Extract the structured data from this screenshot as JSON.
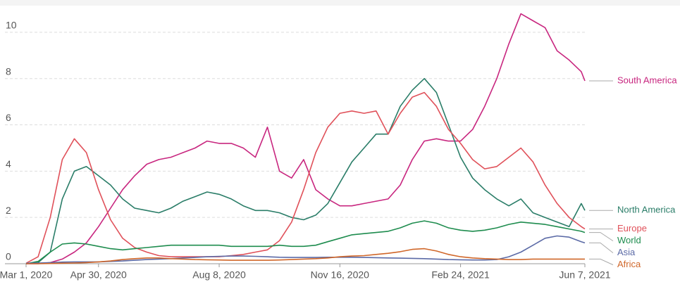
{
  "chart_data": {
    "type": "line",
    "x": [
      "2020-03-01",
      "2020-03-11",
      "2020-03-21",
      "2020-03-31",
      "2020-04-10",
      "2020-04-20",
      "2020-04-30",
      "2020-05-10",
      "2020-05-20",
      "2020-05-30",
      "2020-06-09",
      "2020-06-19",
      "2020-06-29",
      "2020-07-09",
      "2020-07-19",
      "2020-07-29",
      "2020-08-08",
      "2020-08-18",
      "2020-08-28",
      "2020-09-07",
      "2020-09-17",
      "2020-09-27",
      "2020-10-07",
      "2020-10-17",
      "2020-10-27",
      "2020-11-06",
      "2020-11-16",
      "2020-11-26",
      "2020-12-06",
      "2020-12-16",
      "2020-12-26",
      "2021-01-05",
      "2021-01-15",
      "2021-01-25",
      "2021-02-04",
      "2021-02-14",
      "2021-02-24",
      "2021-03-06",
      "2021-03-16",
      "2021-03-26",
      "2021-04-05",
      "2021-04-15",
      "2021-04-25",
      "2021-05-05",
      "2021-05-15",
      "2021-05-25",
      "2021-06-04",
      "2021-06-07"
    ],
    "series": [
      {
        "name": "South America",
        "color": "#c8267f",
        "values": [
          0,
          0,
          0.05,
          0.2,
          0.5,
          0.9,
          1.6,
          2.4,
          3.2,
          3.8,
          4.3,
          4.5,
          4.6,
          4.8,
          5.0,
          5.3,
          5.2,
          5.2,
          5.0,
          4.6,
          5.9,
          4.0,
          3.7,
          4.5,
          3.2,
          2.8,
          2.5,
          2.5,
          2.6,
          2.7,
          2.8,
          3.4,
          4.5,
          5.3,
          5.4,
          5.3,
          5.3,
          5.8,
          6.8,
          8.0,
          9.5,
          10.8,
          10.5,
          10.2,
          9.2,
          8.8,
          8.3,
          7.9
        ]
      },
      {
        "name": "North America",
        "color": "#2a7d68",
        "values": [
          0,
          0.05,
          0.5,
          2.8,
          4.0,
          4.2,
          3.8,
          3.4,
          2.8,
          2.4,
          2.3,
          2.2,
          2.4,
          2.7,
          2.9,
          3.1,
          3.0,
          2.8,
          2.5,
          2.3,
          2.3,
          2.2,
          2.0,
          1.9,
          2.1,
          2.6,
          3.5,
          4.4,
          5.0,
          5.6,
          5.6,
          6.8,
          7.5,
          8.0,
          7.4,
          6.0,
          4.6,
          3.7,
          3.2,
          2.8,
          2.5,
          2.8,
          2.2,
          2.0,
          1.8,
          1.6,
          2.6,
          2.3
        ]
      },
      {
        "name": "Europe",
        "color": "#e0515a",
        "values": [
          0.02,
          0.3,
          2.0,
          4.5,
          5.4,
          4.8,
          3.2,
          1.9,
          1.1,
          0.7,
          0.5,
          0.35,
          0.3,
          0.3,
          0.3,
          0.3,
          0.3,
          0.35,
          0.4,
          0.5,
          0.6,
          1.0,
          1.8,
          3.2,
          4.8,
          5.9,
          6.5,
          6.6,
          6.5,
          6.6,
          5.6,
          6.5,
          7.2,
          7.4,
          6.8,
          5.8,
          5.2,
          4.5,
          4.1,
          4.2,
          4.6,
          5.0,
          4.4,
          3.4,
          2.6,
          2.0,
          1.6,
          1.5
        ]
      },
      {
        "name": "World",
        "color": "#1e8c4e",
        "values": [
          0,
          0.1,
          0.5,
          0.85,
          0.9,
          0.85,
          0.75,
          0.65,
          0.6,
          0.65,
          0.7,
          0.75,
          0.8,
          0.8,
          0.8,
          0.8,
          0.8,
          0.75,
          0.75,
          0.75,
          0.75,
          0.8,
          0.75,
          0.75,
          0.8,
          0.95,
          1.1,
          1.25,
          1.3,
          1.35,
          1.4,
          1.55,
          1.75,
          1.85,
          1.75,
          1.55,
          1.45,
          1.4,
          1.45,
          1.55,
          1.7,
          1.8,
          1.75,
          1.7,
          1.6,
          1.5,
          1.4,
          1.35
        ]
      },
      {
        "name": "Asia",
        "color": "#5b6aa6",
        "values": [
          0.02,
          0.03,
          0.05,
          0.07,
          0.08,
          0.08,
          0.08,
          0.1,
          0.12,
          0.15,
          0.18,
          0.2,
          0.22,
          0.25,
          0.27,
          0.3,
          0.32,
          0.33,
          0.33,
          0.32,
          0.3,
          0.28,
          0.27,
          0.27,
          0.27,
          0.28,
          0.28,
          0.28,
          0.27,
          0.26,
          0.25,
          0.24,
          0.23,
          0.22,
          0.2,
          0.18,
          0.17,
          0.16,
          0.16,
          0.18,
          0.3,
          0.5,
          0.8,
          1.1,
          1.2,
          1.15,
          0.95,
          0.9
        ]
      },
      {
        "name": "Africa",
        "color": "#d0672a",
        "values": [
          0,
          0,
          0.01,
          0.02,
          0.03,
          0.05,
          0.08,
          0.12,
          0.18,
          0.22,
          0.25,
          0.25,
          0.22,
          0.2,
          0.18,
          0.17,
          0.16,
          0.15,
          0.15,
          0.15,
          0.15,
          0.16,
          0.18,
          0.2,
          0.22,
          0.25,
          0.3,
          0.33,
          0.35,
          0.4,
          0.45,
          0.52,
          0.62,
          0.65,
          0.55,
          0.4,
          0.3,
          0.25,
          0.22,
          0.2,
          0.18,
          0.18,
          0.2,
          0.2,
          0.2,
          0.2,
          0.2,
          0.2
        ]
      }
    ],
    "xlim": [
      "2020-03-01",
      "2021-06-07"
    ],
    "xticks": [
      {
        "value": "2020-03-01",
        "label": "Mar 1, 2020"
      },
      {
        "value": "2020-04-30",
        "label": "Apr 30, 2020"
      },
      {
        "value": "2020-08-08",
        "label": "Aug 8, 2020"
      },
      {
        "value": "2020-11-16",
        "label": "Nov 16, 2020"
      },
      {
        "value": "2021-02-24",
        "label": "Feb 24, 2021"
      },
      {
        "value": "2021-06-07",
        "label": "Jun 7, 2021"
      }
    ],
    "ylim": [
      0,
      11
    ],
    "yticks": [
      0,
      2,
      4,
      6,
      8,
      10
    ],
    "grid": true
  }
}
